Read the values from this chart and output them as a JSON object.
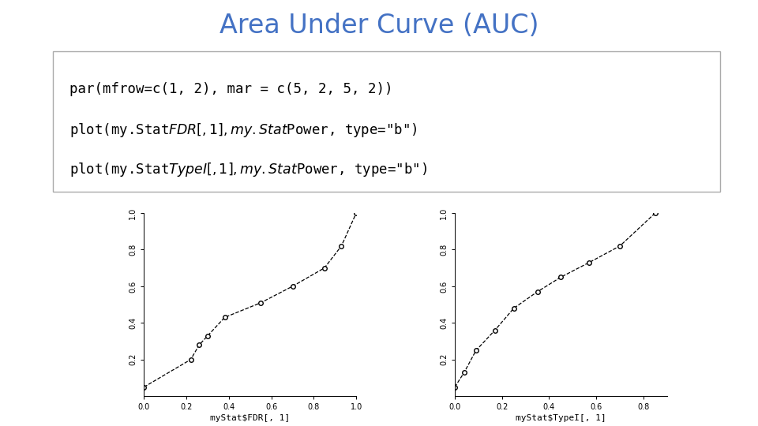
{
  "title": "Area Under Curve (AUC)",
  "title_color": "#4472C4",
  "title_fontsize": 24,
  "code_lines": [
    "par(mfrow=c(1, 2), mar = c(5, 2, 5, 2))",
    "plot(my.Stat$FDR[, 1], my.Stat$Power, type=\"b\")",
    "plot(my.Stat$TypeI[, 1], my.Stat$Power, type=\"b\")"
  ],
  "plot1": {
    "x": [
      0.0,
      0.22,
      0.26,
      0.3,
      0.38,
      0.55,
      0.7,
      0.85,
      0.93,
      1.0
    ],
    "y": [
      0.05,
      0.2,
      0.28,
      0.33,
      0.43,
      0.51,
      0.6,
      0.7,
      0.82,
      1.0
    ],
    "xlabel": "myStat$FDR[, 1]",
    "xlim": [
      0.0,
      1.0
    ],
    "ylim": [
      0.0,
      1.0
    ],
    "xticks": [
      0.0,
      0.2,
      0.4,
      0.6,
      0.8,
      1.0
    ],
    "yticks": [
      0.2,
      0.4,
      0.6,
      0.8,
      1.0
    ]
  },
  "plot2": {
    "x": [
      0.0,
      0.04,
      0.09,
      0.17,
      0.25,
      0.35,
      0.45,
      0.57,
      0.7,
      0.85
    ],
    "y": [
      0.05,
      0.13,
      0.25,
      0.36,
      0.48,
      0.57,
      0.65,
      0.73,
      0.82,
      1.0
    ],
    "xlabel": "myStat$TypeI[, 1]",
    "xlim": [
      0.0,
      0.9
    ],
    "ylim": [
      0.0,
      1.0
    ],
    "xticks": [
      0.0,
      0.2,
      0.4,
      0.6,
      0.8
    ],
    "yticks": [
      0.2,
      0.4,
      0.6,
      0.8,
      1.0
    ]
  },
  "background_color": "#ffffff",
  "line_style": "--",
  "marker": "o",
  "marker_facecolor": "white",
  "marker_edgecolor": "black",
  "line_color": "black"
}
